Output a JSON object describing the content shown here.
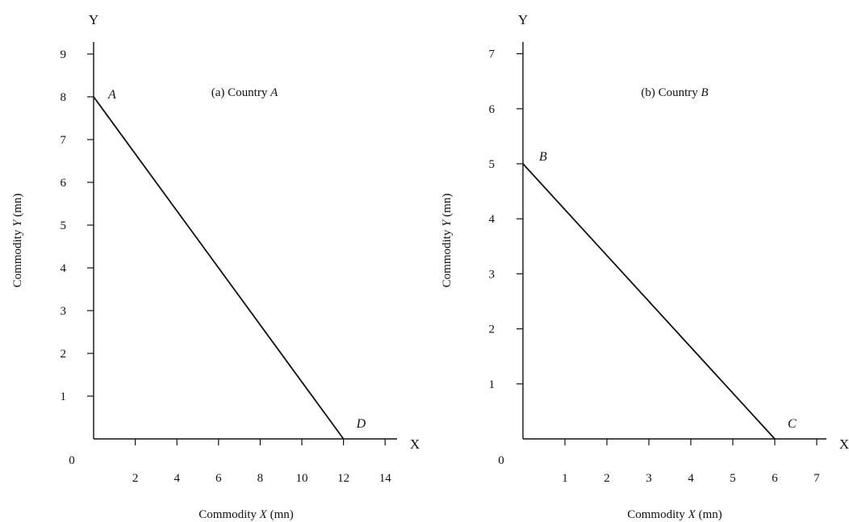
{
  "chart_data": [
    {
      "type": "line",
      "title_text": "(a) Country ",
      "title_italic": "A",
      "x_letter": "X",
      "y_letter": "Y",
      "origin_label": "0",
      "xlabel_text": "Commodity ",
      "xlabel_italic": "X",
      "xlabel_unit": " (mn)",
      "ylabel_text": "Commodity ",
      "ylabel_italic": "Y",
      "ylabel_unit": " (mn)",
      "xlim": [
        0,
        14
      ],
      "ylim": [
        0,
        9
      ],
      "xticks": [
        2,
        4,
        6,
        8,
        10,
        12,
        14
      ],
      "yticks": [
        1,
        2,
        3,
        4,
        5,
        6,
        7,
        8,
        9
      ],
      "grid": false,
      "series": [
        {
          "points": [
            {
              "label": "A",
              "x": 0,
              "y": 8
            },
            {
              "label": "D",
              "x": 12,
              "y": 0
            }
          ]
        }
      ]
    },
    {
      "type": "line",
      "title_text": "(b) Country ",
      "title_italic": "B",
      "x_letter": "X",
      "y_letter": "Y",
      "origin_label": "0",
      "xlabel_text": "Commodity ",
      "xlabel_italic": "X",
      "xlabel_unit": " (mn)",
      "ylabel_text": "Commodity ",
      "ylabel_italic": "Y",
      "ylabel_unit": " (mn)",
      "xlim": [
        0,
        7
      ],
      "ylim": [
        0,
        7
      ],
      "xticks": [
        1,
        2,
        3,
        4,
        5,
        6,
        7
      ],
      "yticks": [
        1,
        2,
        3,
        4,
        5,
        6,
        7
      ],
      "grid": false,
      "series": [
        {
          "points": [
            {
              "label": "B",
              "x": 0,
              "y": 5
            },
            {
              "label": "C",
              "x": 6,
              "y": 0
            }
          ]
        }
      ]
    }
  ]
}
